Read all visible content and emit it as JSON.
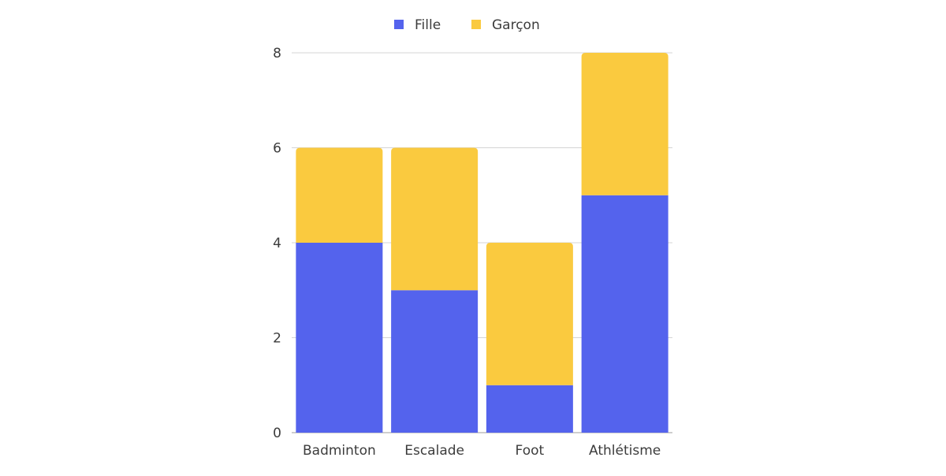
{
  "chart_data": {
    "type": "bar",
    "stacked": true,
    "categories": [
      "Badminton",
      "Escalade",
      "Foot",
      "Athlétisme"
    ],
    "series": [
      {
        "name": "Fille",
        "values": [
          4,
          3,
          1,
          5
        ],
        "color": "#5463ED"
      },
      {
        "name": "Garçon",
        "values": [
          2,
          3,
          3,
          3
        ],
        "color": "#FACA3F"
      }
    ],
    "title": "",
    "xlabel": "",
    "ylabel": "",
    "ylim": [
      0,
      8
    ],
    "yticks": [
      "0",
      "2",
      "4",
      "6",
      "8"
    ],
    "grid": true,
    "legend_position": "top-center"
  }
}
